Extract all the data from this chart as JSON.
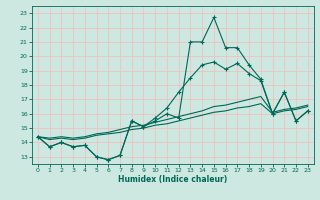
{
  "xlabel": "Humidex (Indice chaleur)",
  "bg_color": "#cce8e0",
  "grid_color": "#f0c0c0",
  "line_color": "#006858",
  "xlim": [
    -0.5,
    23.5
  ],
  "ylim": [
    12.5,
    23.5
  ],
  "xticks": [
    0,
    1,
    2,
    3,
    4,
    5,
    6,
    7,
    8,
    9,
    10,
    11,
    12,
    13,
    14,
    15,
    16,
    17,
    18,
    19,
    20,
    21,
    22,
    23
  ],
  "yticks": [
    13,
    14,
    15,
    16,
    17,
    18,
    19,
    20,
    21,
    22,
    23
  ],
  "line1_y": [
    14.4,
    13.7,
    14.0,
    13.7,
    13.8,
    13.0,
    12.8,
    13.1,
    15.5,
    15.1,
    15.5,
    16.0,
    15.7,
    21.0,
    21.0,
    22.7,
    20.6,
    20.6,
    19.4,
    18.4,
    16.0,
    17.5,
    15.5,
    16.2
  ],
  "line2_y": [
    14.4,
    13.7,
    14.0,
    13.7,
    13.8,
    13.0,
    12.8,
    13.1,
    15.5,
    15.1,
    15.7,
    16.4,
    17.5,
    18.5,
    19.4,
    19.6,
    19.1,
    19.5,
    18.8,
    18.3,
    16.0,
    17.5,
    15.5,
    16.2
  ],
  "line3_y": [
    14.4,
    14.2,
    14.3,
    14.2,
    14.3,
    14.5,
    14.6,
    14.7,
    14.9,
    15.0,
    15.2,
    15.3,
    15.5,
    15.7,
    15.9,
    16.1,
    16.2,
    16.4,
    16.5,
    16.7,
    16.0,
    16.2,
    16.3,
    16.5
  ],
  "line4_y": [
    14.4,
    14.3,
    14.4,
    14.3,
    14.4,
    14.6,
    14.7,
    14.9,
    15.1,
    15.2,
    15.4,
    15.6,
    15.8,
    16.0,
    16.2,
    16.5,
    16.6,
    16.8,
    17.0,
    17.2,
    16.1,
    16.3,
    16.4,
    16.6
  ]
}
